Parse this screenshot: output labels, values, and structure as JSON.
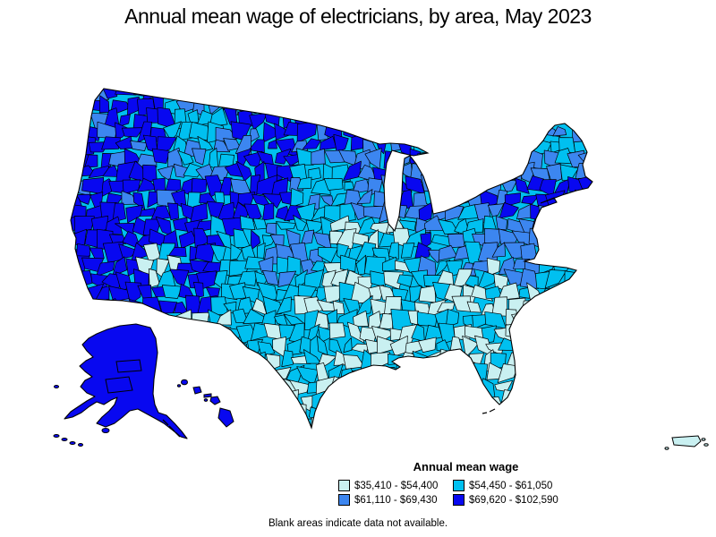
{
  "title": "Annual mean wage of electricians, by area, May 2023",
  "legend": {
    "title": "Annual mean wage",
    "items": [
      {
        "label": "$35,410 - $54,400",
        "color": "#c9f0f1",
        "wage_class": 1
      },
      {
        "label": "$54,450 - $61,050",
        "color": "#00c0f0",
        "wage_class": 2
      },
      {
        "label": "$61,110 - $69,430",
        "color": "#3c86f0",
        "wage_class": 3
      },
      {
        "label": "$69,620 - $102,590",
        "color": "#0808f0",
        "wage_class": 4
      }
    ]
  },
  "footnote": "Blank areas indicate data not available.",
  "map": {
    "type": "choropleth",
    "border_color": "#000000",
    "water_color": "#ffffff",
    "regions": [
      {
        "name": "eastern-california-valley",
        "wage_class": 1
      },
      {
        "name": "pacific-northwest",
        "wage_class": 4
      },
      {
        "name": "california",
        "wage_class": 4
      },
      {
        "name": "nevada",
        "wage_class": 4
      },
      {
        "name": "idaho",
        "wage_class": 2
      },
      {
        "name": "montana",
        "wage_class": 4
      },
      {
        "name": "north-dakota",
        "wage_class": 4
      },
      {
        "name": "wyoming",
        "wage_class": 4
      },
      {
        "name": "utah",
        "wage_class": 2
      },
      {
        "name": "colorado",
        "wage_class": 3
      },
      {
        "name": "arizona-new-mexico",
        "wage_class": 2
      },
      {
        "name": "northern-plains",
        "wage_class": 3
      },
      {
        "name": "nebraska-kansas",
        "wage_class": 2
      },
      {
        "name": "oklahoma",
        "wage_class": 2
      },
      {
        "name": "texas",
        "wage_class": 2
      },
      {
        "name": "minnesota",
        "wage_class": 4
      },
      {
        "name": "wisconsin",
        "wage_class": 3
      },
      {
        "name": "iowa-missouri",
        "wage_class": 2
      },
      {
        "name": "illinois",
        "wage_class": 4
      },
      {
        "name": "michigan",
        "wage_class": 2
      },
      {
        "name": "indiana-ohio",
        "wage_class": 3
      },
      {
        "name": "kentucky-tennessee",
        "wage_class": 2
      },
      {
        "name": "northeast-corridor",
        "wage_class": 4
      },
      {
        "name": "new-york-pennsylvania",
        "wage_class": 3
      },
      {
        "name": "northern-new-england",
        "wage_class": 3
      },
      {
        "name": "mid-atlantic",
        "wage_class": 3
      },
      {
        "name": "virginia-carolinas",
        "wage_class": 2
      },
      {
        "name": "southeast",
        "wage_class": 1
      },
      {
        "name": "florida",
        "wage_class": 1
      },
      {
        "name": "gulf-coast-louisiana",
        "wage_class": 1
      },
      {
        "name": "alaska",
        "wage_class": 4
      },
      {
        "name": "hawaii",
        "wage_class": 4
      },
      {
        "name": "puerto-rico",
        "wage_class": 1
      }
    ]
  }
}
